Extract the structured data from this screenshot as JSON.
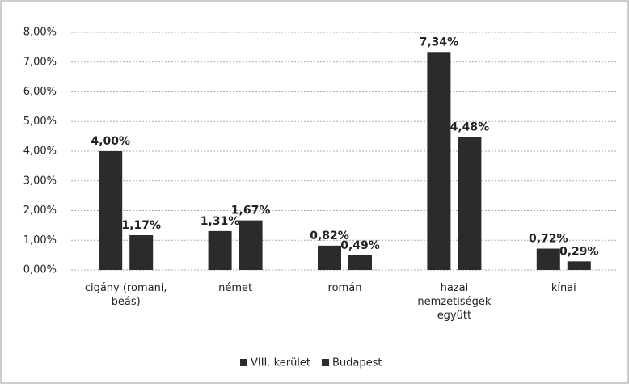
{
  "chart_data": {
    "type": "bar",
    "categories": [
      "cigány (romani, beás)",
      "német",
      "román",
      "hazai nemzetiségek együtt",
      "kínai"
    ],
    "series": [
      {
        "name": "VIII. kerület",
        "color": "#2b2b2b",
        "values": [
          4.0,
          1.31,
          0.82,
          7.34,
          0.72
        ],
        "value_labels": [
          "4,00%",
          "1,31%",
          "0,82%",
          "7,34%",
          "0,72%"
        ]
      },
      {
        "name": "Budapest",
        "color": "#2b2b2b",
        "values": [
          1.17,
          1.67,
          0.49,
          4.48,
          0.29
        ],
        "value_labels": [
          "1,17%",
          "1,67%",
          "0,49%",
          "4,48%",
          "0,29%"
        ]
      }
    ],
    "ylim": [
      0,
      8
    ],
    "yticks": [
      {
        "value": 0,
        "label": "0,00%"
      },
      {
        "value": 1,
        "label": "1,00%"
      },
      {
        "value": 2,
        "label": "2,00%"
      },
      {
        "value": 3,
        "label": "3,00%"
      },
      {
        "value": 4,
        "label": "4,00%"
      },
      {
        "value": 5,
        "label": "5,00%"
      },
      {
        "value": 6,
        "label": "6,00%"
      },
      {
        "value": 7,
        "label": "7,00%"
      },
      {
        "value": 8,
        "label": "8,00%"
      }
    ],
    "grid": true,
    "legend": "bottom"
  }
}
